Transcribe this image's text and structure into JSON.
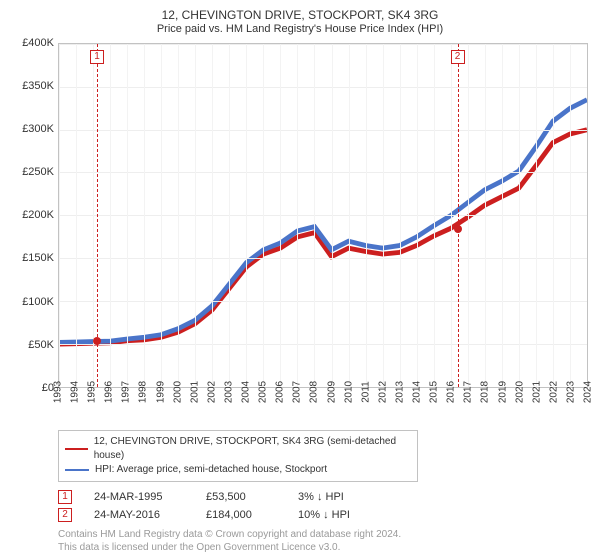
{
  "title": "12, CHEVINGTON DRIVE, STOCKPORT, SK4 3RG",
  "subtitle": "Price paid vs. HM Land Registry's House Price Index (HPI)",
  "chart": {
    "type": "line",
    "background_color": "#ffffff",
    "grid_color": "#eeeeee",
    "vgrid_color": "#f3f3f3",
    "border_color": "#c2c2c2",
    "title_fontsize": 12,
    "label_fontsize": 11,
    "line_width": 1.6,
    "x": {
      "ticks": [
        "1993",
        "1994",
        "1995",
        "1996",
        "1997",
        "1998",
        "1999",
        "2000",
        "2001",
        "2002",
        "2003",
        "2004",
        "2005",
        "2006",
        "2007",
        "2008",
        "2009",
        "2010",
        "2011",
        "2012",
        "2013",
        "2014",
        "2015",
        "2016",
        "2017",
        "2018",
        "2019",
        "2020",
        "2021",
        "2022",
        "2023",
        "2024"
      ],
      "min_index": 0,
      "max_index": 31
    },
    "y": {
      "min": 0,
      "max": 400000,
      "tick_step": 50000,
      "tick_labels": [
        "£0",
        "£50K",
        "£100K",
        "£150K",
        "£200K",
        "£250K",
        "£300K",
        "£350K",
        "£400K"
      ]
    },
    "series": [
      {
        "name": "12, CHEVINGTON DRIVE, STOCKPORT, SK4 3RG (semi-detached house)",
        "color": "#cc1f1f",
        "values_by_year": {
          "1993": 50000,
          "1994": 50500,
          "1995": 51000,
          "1996": 51500,
          "1997": 54000,
          "1998": 55000,
          "1999": 58000,
          "2000": 64000,
          "2001": 74000,
          "2002": 90000,
          "2003": 115000,
          "2004": 140000,
          "2005": 155000,
          "2006": 162000,
          "2007": 175000,
          "2008": 180000,
          "2009": 152000,
          "2010": 162000,
          "2011": 158000,
          "2012": 155000,
          "2013": 157000,
          "2014": 165000,
          "2015": 176000,
          "2016": 185000,
          "2017": 198000,
          "2018": 212000,
          "2019": 222000,
          "2020": 232000,
          "2021": 258000,
          "2022": 285000,
          "2023": 295000,
          "2024": 300000
        }
      },
      {
        "name": "HPI: Average price, semi-detached house, Stockport",
        "color": "#4a74c9",
        "values_by_year": {
          "1993": 52000,
          "1994": 52500,
          "1995": 53000,
          "1996": 53500,
          "1997": 56000,
          "1998": 58000,
          "1999": 61000,
          "2000": 68000,
          "2001": 78000,
          "2002": 95000,
          "2003": 120000,
          "2004": 145000,
          "2005": 160000,
          "2006": 168000,
          "2007": 182000,
          "2008": 187000,
          "2009": 160000,
          "2010": 170000,
          "2011": 165000,
          "2012": 162000,
          "2013": 165000,
          "2014": 175000,
          "2015": 188000,
          "2016": 200000,
          "2017": 215000,
          "2018": 230000,
          "2019": 240000,
          "2020": 252000,
          "2021": 280000,
          "2022": 310000,
          "2023": 325000,
          "2024": 335000
        }
      }
    ],
    "sales": [
      {
        "id": "1",
        "year_frac": 2.23,
        "price": 53500,
        "date": "24-MAR-1995",
        "pct_vs_hpi": "3% ↓ HPI",
        "color": "#cc1f1f"
      },
      {
        "id": "2",
        "year_frac": 23.4,
        "price": 184000,
        "date": "24-MAY-2016",
        "pct_vs_hpi": "10% ↓ HPI",
        "color": "#cc1f1f"
      }
    ],
    "marker_line_color": "#cc1f1f"
  },
  "legend_header": {
    "series1": "12, CHEVINGTON DRIVE, STOCKPORT, SK4 3RG (semi-detached house)",
    "series2": "HPI: Average price, semi-detached house, Stockport"
  },
  "footnotes": [
    {
      "id": "1",
      "date": "24-MAR-1995",
      "price": "£53,500",
      "pct": "3% ↓ HPI"
    },
    {
      "id": "2",
      "date": "24-MAY-2016",
      "price": "£184,000",
      "pct": "10% ↓ HPI"
    }
  ],
  "license": {
    "line1": "Contains HM Land Registry data © Crown copyright and database right 2024.",
    "line2": "This data is licensed under the Open Government Licence v3.0."
  }
}
